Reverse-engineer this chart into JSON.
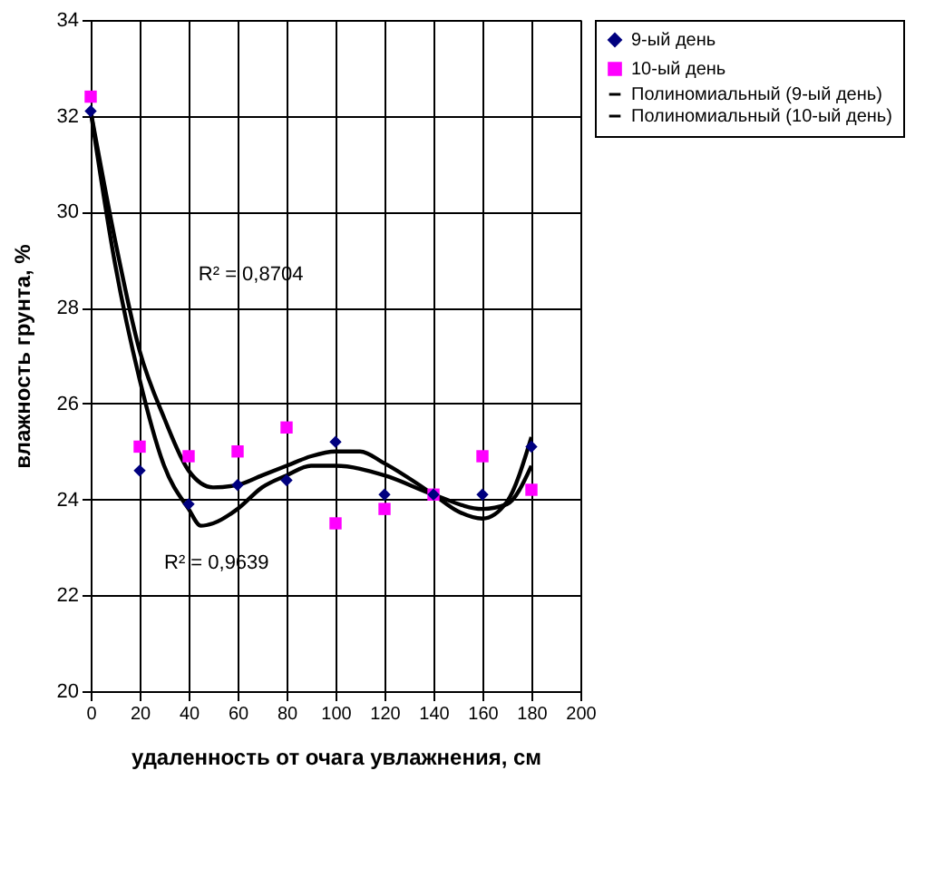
{
  "chart_data": {
    "type": "scatter",
    "xlabel": "удаленность от очага увлажнения, см",
    "ylabel": "влажность грунта, %",
    "x": [
      0,
      20,
      40,
      60,
      80,
      100,
      120,
      140,
      160,
      180
    ],
    "series": [
      {
        "name": "9-ый день",
        "color": "#00007f",
        "marker": "diamond",
        "values": [
          32.1,
          24.6,
          23.9,
          24.3,
          24.4,
          25.2,
          24.1,
          24.1,
          24.1,
          25.1
        ]
      },
      {
        "name": "10-ый день",
        "color": "#ff00ff",
        "marker": "square",
        "values": [
          32.4,
          25.1,
          24.9,
          25.0,
          25.5,
          23.5,
          23.8,
          24.1,
          24.9,
          24.2
        ]
      },
      {
        "name": "Полиномиальный (9-ый день)",
        "type": "line",
        "color": "#000000",
        "line_style": "solid",
        "x": [
          0,
          10,
          20,
          30,
          40,
          50,
          60,
          70,
          80,
          90,
          100,
          110,
          120,
          140,
          150,
          160,
          170,
          180
        ],
        "values": [
          32.1,
          29.4,
          27.1,
          25.7,
          24.6,
          24.25,
          24.3,
          24.5,
          24.7,
          24.9,
          25.0,
          25.0,
          24.75,
          24.1,
          23.75,
          23.6,
          23.95,
          25.3
        ]
      },
      {
        "name": "Полиномиальный (10-ый день)",
        "type": "line",
        "color": "#000000",
        "line_style": "solid",
        "x": [
          0,
          10,
          20,
          30,
          40,
          45,
          50,
          60,
          70,
          80,
          90,
          100,
          120,
          140,
          160,
          170,
          180
        ],
        "values": [
          32.1,
          28.9,
          26.5,
          24.7,
          23.8,
          23.45,
          23.5,
          23.8,
          24.25,
          24.5,
          24.7,
          24.7,
          24.5,
          24.1,
          23.8,
          23.9,
          24.7
        ]
      }
    ],
    "annotations": [
      "R² = 0,8704",
      "R² = 0,9639"
    ],
    "xlim": [
      0,
      200
    ],
    "xticks": [
      0,
      20,
      40,
      60,
      80,
      100,
      120,
      140,
      160,
      180,
      200
    ],
    "ylim": [
      20,
      34
    ],
    "yticks": [
      20,
      22,
      24,
      26,
      28,
      30,
      32,
      34
    ],
    "grid": true,
    "legend": "right"
  }
}
